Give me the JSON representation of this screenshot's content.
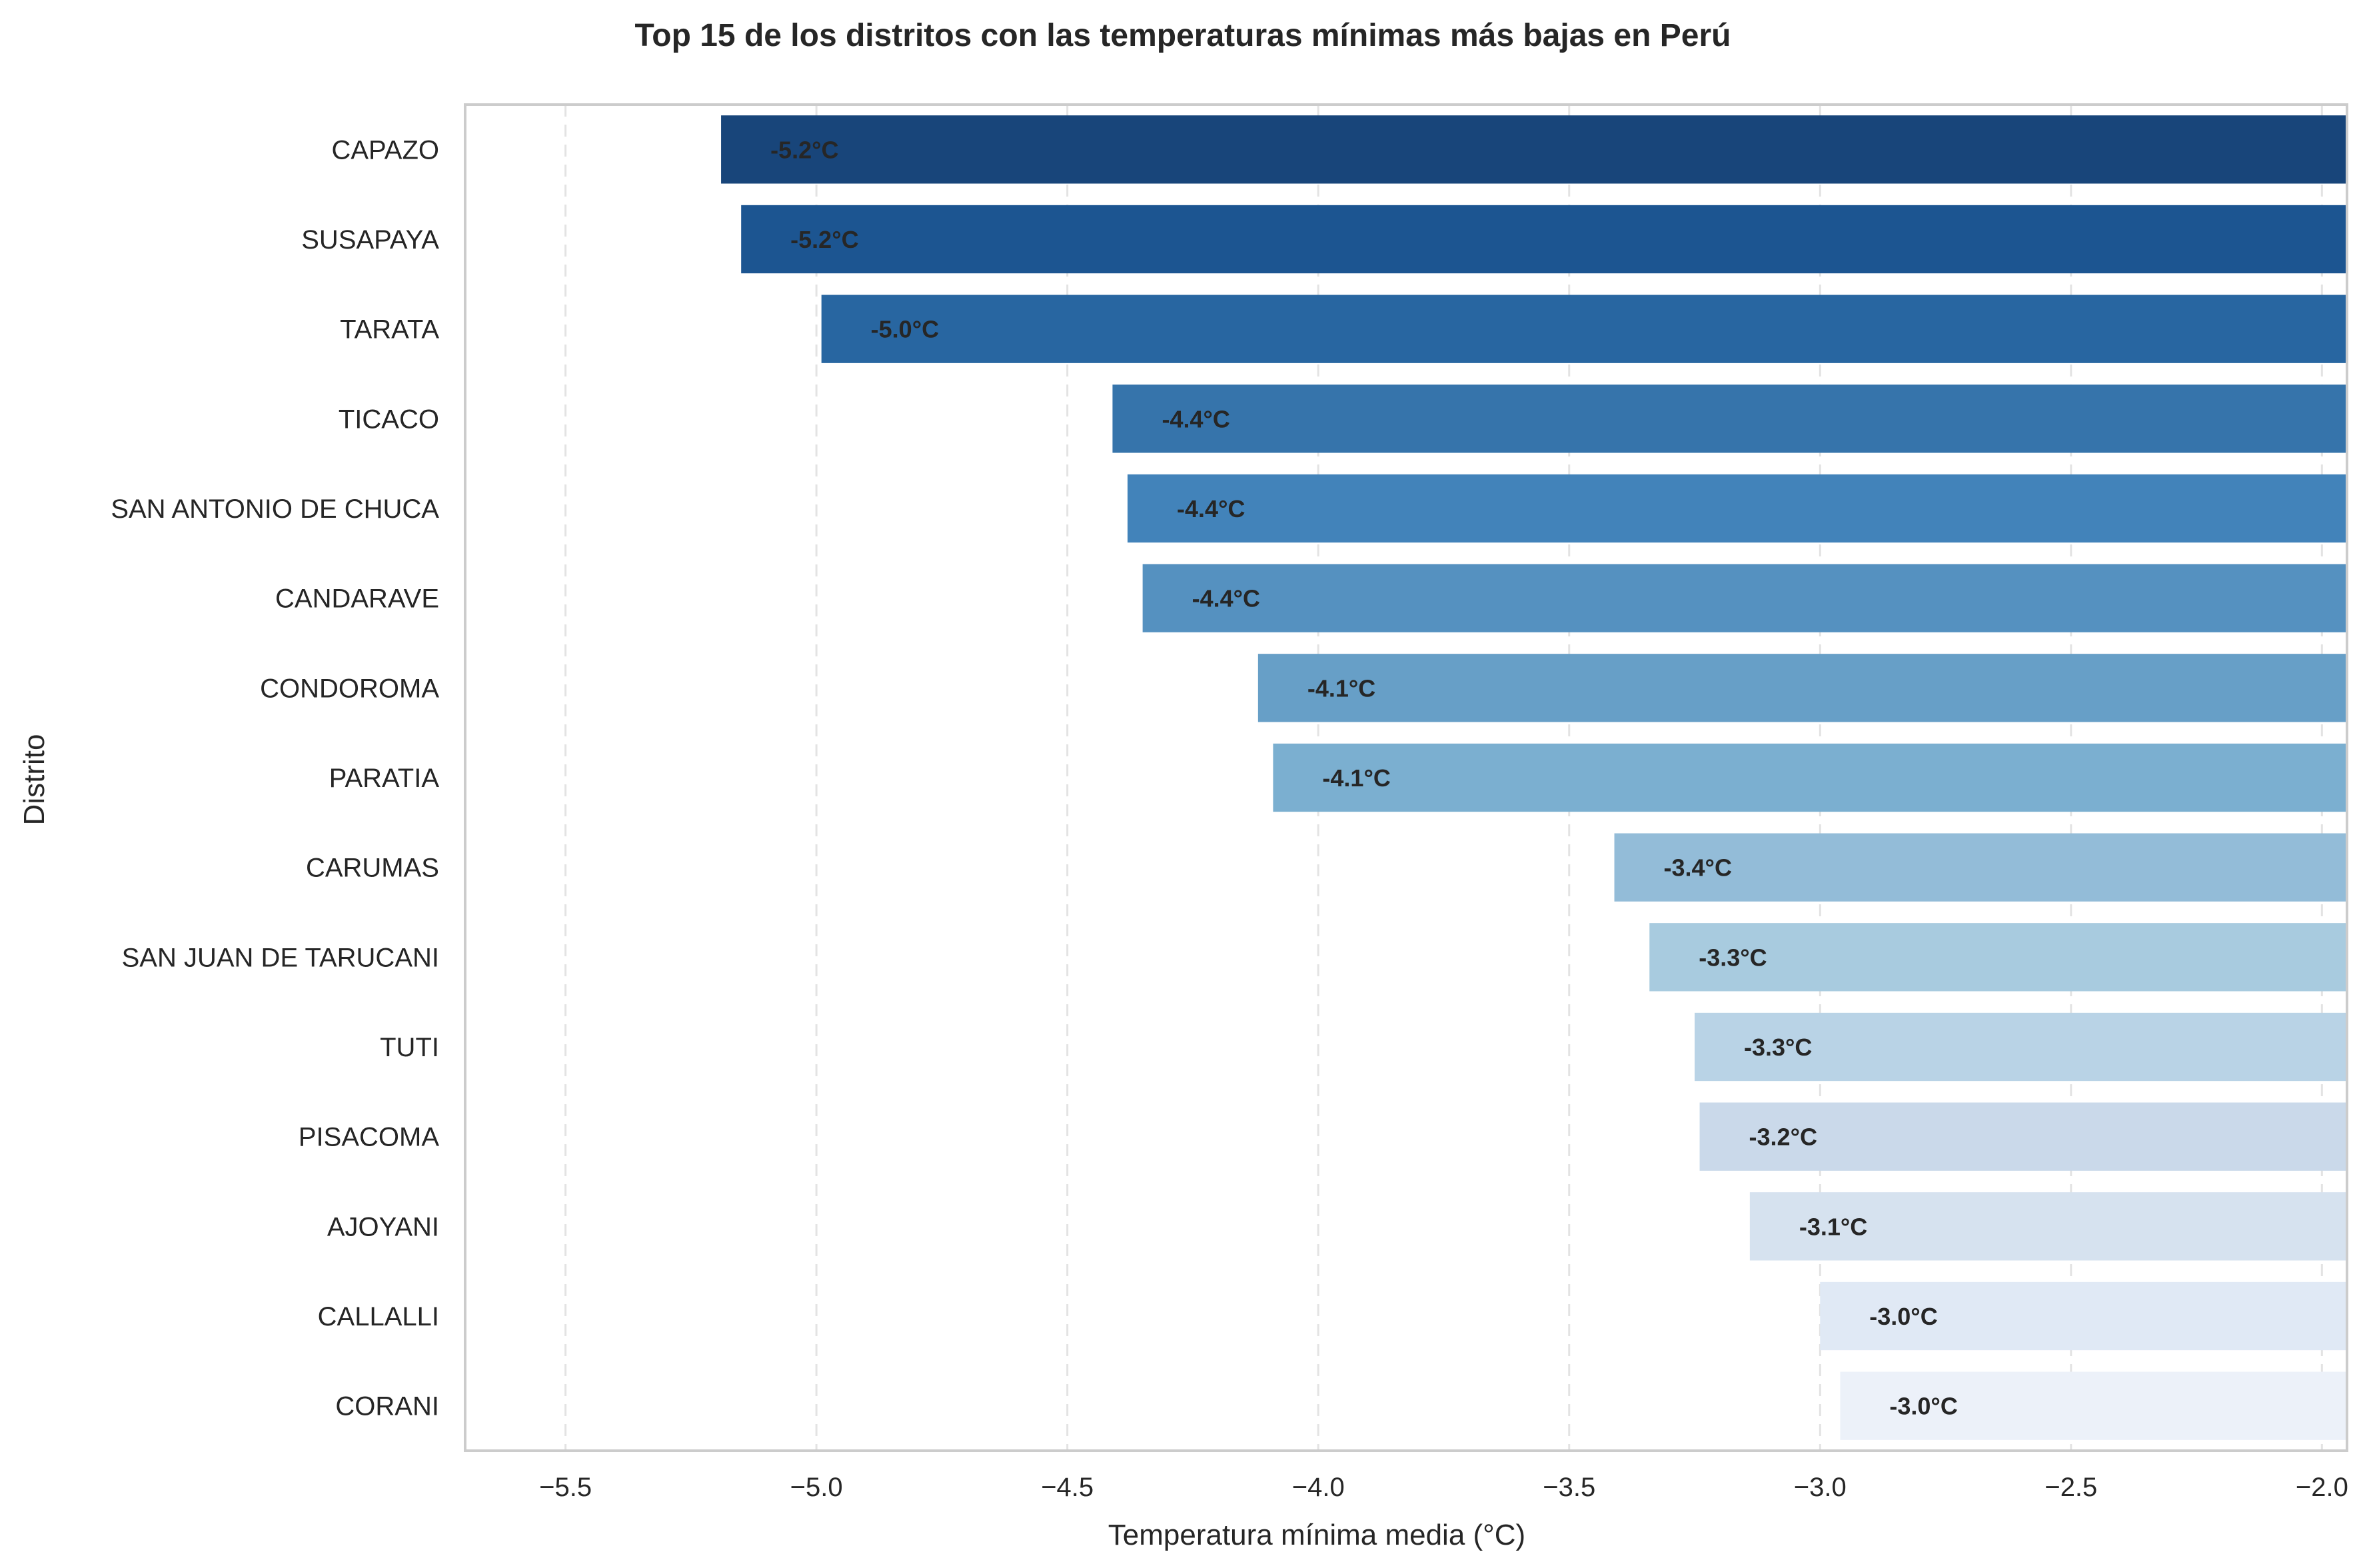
{
  "chart_data": {
    "type": "bar",
    "orientation": "horizontal",
    "title": "Top 15 de los distritos con las temperaturas mínimas más bajas en Perú",
    "xlabel": "Temperatura mínima media (°C)",
    "ylabel": "Distrito",
    "xlim": [
      -5.7,
      -1.95
    ],
    "xticks": [
      -5.5,
      -5.0,
      -4.5,
      -4.0,
      -3.5,
      -3.0,
      -2.5,
      -2.0
    ],
    "xtick_labels": [
      "−5.5",
      "−5.0",
      "−4.5",
      "−4.0",
      "−3.5",
      "−3.0",
      "−2.5",
      "−2.0"
    ],
    "grid": "x, dashed",
    "categories": [
      "CAPAZO",
      "SUSAPAYA",
      "TARATA",
      "TICACO",
      "SAN ANTONIO DE CHUCA",
      "CANDARAVE",
      "CONDOROMA",
      "PARATIA",
      "CARUMAS",
      "SAN JUAN DE TARUCANI",
      "TUTI",
      "PISACOMA",
      "AJOYANI",
      "CALLALLI",
      "CORANI"
    ],
    "values": [
      -5.19,
      -5.15,
      -4.99,
      -4.41,
      -4.38,
      -4.35,
      -4.12,
      -4.09,
      -3.41,
      -3.34,
      -3.25,
      -3.24,
      -3.14,
      -3.0,
      -2.96
    ],
    "data_labels": [
      "-5.2°C",
      "-5.2°C",
      "-5.0°C",
      "-4.4°C",
      "-4.4°C",
      "-4.4°C",
      "-4.1°C",
      "-4.1°C",
      "-3.4°C",
      "-3.3°C",
      "-3.3°C",
      "-3.2°C",
      "-3.1°C",
      "-3.0°C",
      "-3.0°C"
    ],
    "colors": [
      "#18457a",
      "#1c5591",
      "#2866a1",
      "#3674ab",
      "#4283ba",
      "#5591c0",
      "#679fc7",
      "#7bafd0",
      "#93bcd8",
      "#a8cbdf",
      "#b9d3e6",
      "#cad9ea",
      "#d6e2ef",
      "#e0e9f5",
      "#ecf1f9"
    ]
  }
}
